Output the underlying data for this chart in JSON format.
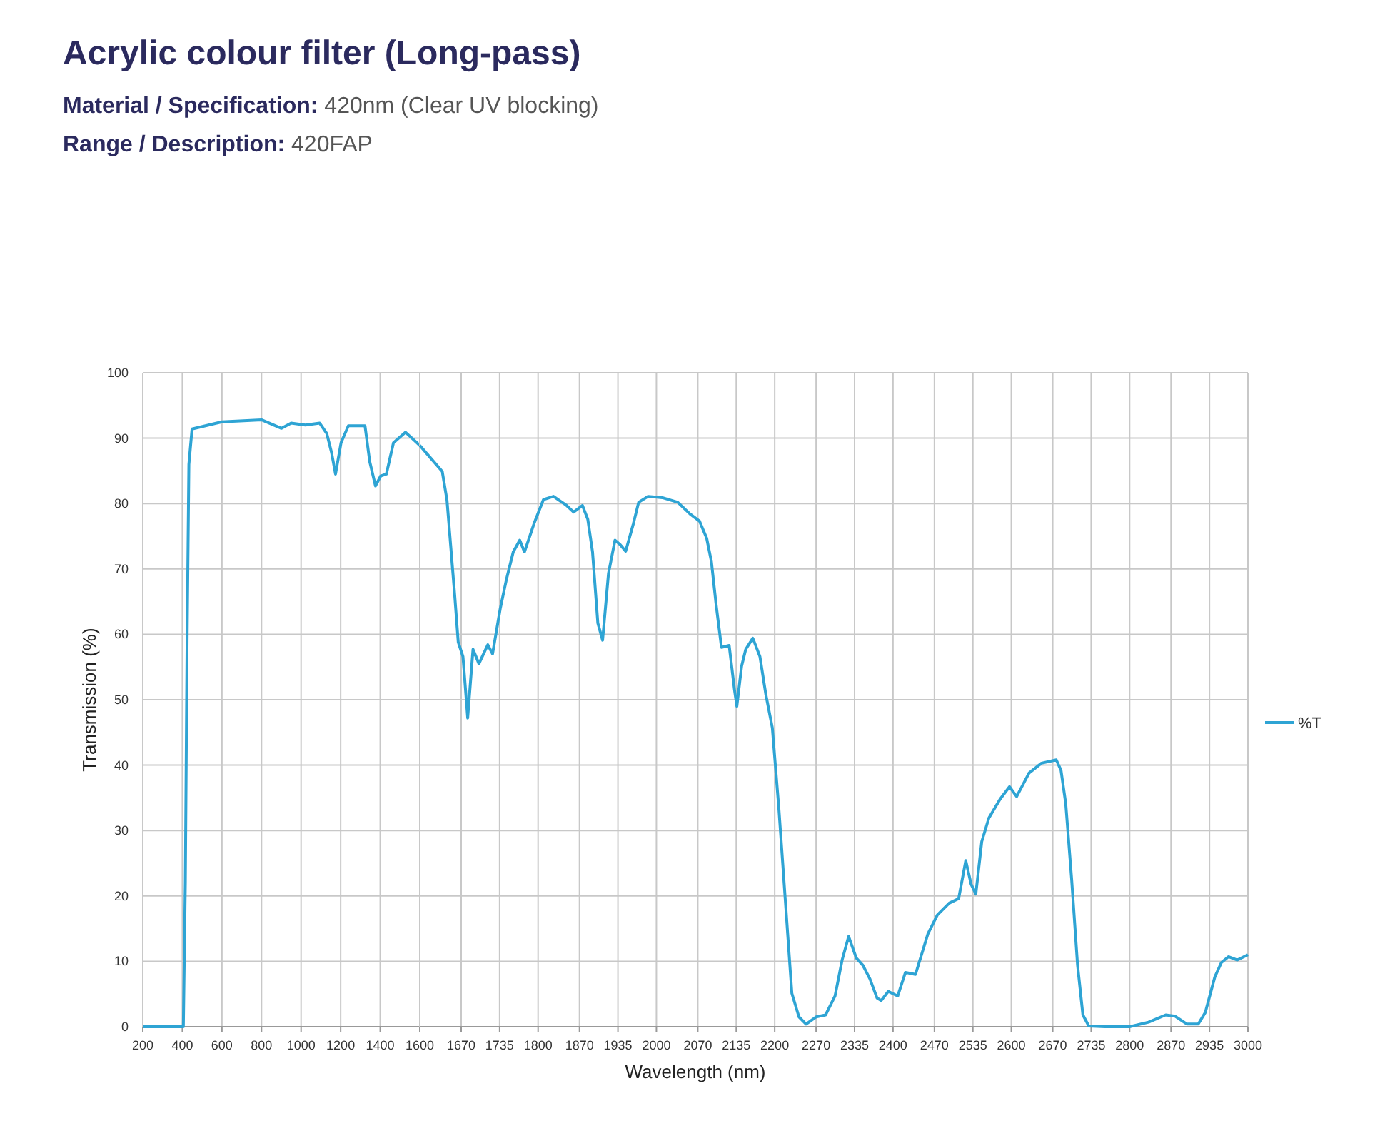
{
  "chart_data": [
    {
      "type": "line",
      "title": "Acrylic colour filter (Long-pass)",
      "subtitle": "Material / Specification: 420nm (Clear UV blocking)",
      "annotations": [
        "Range / Description: 420FAP"
      ],
      "ylabel": "Transmission (%)",
      "xlim": [
        200,
        1600
      ],
      "ylim": [
        0,
        100
      ],
      "xticks": [
        200,
        400,
        600,
        800,
        1000,
        1200,
        1400,
        1600
      ],
      "yticks": [
        0,
        10,
        20,
        30,
        40,
        50,
        60,
        70,
        80,
        90,
        100
      ],
      "grid": true,
      "x": [
        200,
        300,
        400,
        405,
        415,
        424,
        433,
        449,
        600,
        800,
        901,
        950,
        1022,
        1094,
        1130,
        1154,
        1174,
        1202,
        1239,
        1323,
        1347,
        1376,
        1402,
        1431,
        1467,
        1528,
        1600
      ],
      "series": [
        {
          "color": "#2ea4d4",
          "values": [
            0,
            0,
            0,
            0,
            22,
            59,
            86,
            91.4,
            92.5,
            92.8,
            91.5,
            92.3,
            92,
            92.3,
            90.7,
            87.8,
            84.5,
            89.3,
            91.9,
            91.9,
            86.4,
            82.7,
            84.2,
            84.5,
            89.3,
            90.9,
            88.9
          ]
        }
      ]
    },
    {
      "type": "line",
      "xlabel": "Wavelength (nm)",
      "xlim": [
        1600,
        3000
      ],
      "ylim": [
        0,
        100
      ],
      "xticks": [
        1670,
        1735,
        1800,
        1870,
        1935,
        2000,
        2070,
        2135,
        2200,
        2270,
        2335,
        2400,
        2470,
        2535,
        2600,
        2670,
        2735,
        2800,
        2870,
        2935,
        3000
      ],
      "yticks": [
        0,
        10,
        20,
        30,
        40,
        50,
        60,
        70,
        80,
        90,
        100
      ],
      "grid": true,
      "legend": "right",
      "tick_labels": "x",
      "x": [
        1600,
        1617,
        1638,
        1646,
        1659,
        1665,
        1673,
        1681,
        1690,
        1700,
        1715,
        1723,
        1736,
        1746,
        1758,
        1769,
        1777,
        1793,
        1809,
        1826,
        1847,
        1860,
        1875,
        1884,
        1892,
        1901,
        1909,
        1919,
        1930,
        1939,
        1948,
        1961,
        1970,
        1986,
        2010,
        2036,
        2057,
        2073,
        2085,
        2093,
        2101,
        2110,
        2123,
        2132,
        2136,
        2144,
        2151,
        2163,
        2175,
        2185,
        2196,
        2207,
        2220,
        2229,
        2241,
        2253,
        2270,
        2286,
        2302,
        2314,
        2325,
        2338,
        2349,
        2361,
        2373,
        2380,
        2392,
        2408,
        2421,
        2438,
        2459,
        2475,
        2495,
        2511,
        2523,
        2532,
        2540,
        2550,
        2562,
        2581,
        2597,
        2609,
        2630,
        2651,
        2676,
        2684,
        2692,
        2702,
        2712,
        2721,
        2731,
        2758,
        2800,
        2832,
        2861,
        2877,
        2897,
        2916,
        2928,
        2944,
        2955,
        2967,
        2982,
        3000
      ],
      "series": [
        {
          "name": "%T",
          "color": "#2ea4d4",
          "values": [
            88.9,
            87.1,
            84.9,
            80.5,
            66,
            58.8,
            56.6,
            47.2,
            57.7,
            55.5,
            58.4,
            57,
            63.9,
            68.2,
            72.6,
            74.4,
            72.6,
            76.9,
            80.6,
            81.1,
            79.8,
            78.7,
            79.7,
            77.6,
            72.6,
            61.7,
            59.1,
            69.3,
            74.4,
            73.7,
            72.7,
            76.9,
            80.2,
            81.1,
            80.9,
            80.2,
            78.4,
            77.3,
            74.7,
            71.1,
            64.5,
            58,
            58.3,
            51.5,
            49,
            55.1,
            57.7,
            59.4,
            56.6,
            50.8,
            45.7,
            33.4,
            16.7,
            5.1,
            1.5,
            0.4,
            1.5,
            1.8,
            4.7,
            10.2,
            13.8,
            10.5,
            9.4,
            7.3,
            4.4,
            4,
            5.4,
            4.7,
            8.3,
            8,
            14.2,
            17.1,
            18.9,
            19.6,
            25.4,
            21.8,
            20.3,
            28.3,
            31.9,
            34.8,
            36.7,
            35.2,
            38.8,
            40.3,
            40.8,
            39.2,
            34.1,
            22.5,
            9.4,
            1.8,
            0.1,
            0,
            0,
            0.7,
            1.8,
            1.6,
            0.4,
            0.4,
            2.2,
            7.6,
            9.8,
            10.7,
            10.2,
            11
          ]
        }
      ]
    }
  ]
}
